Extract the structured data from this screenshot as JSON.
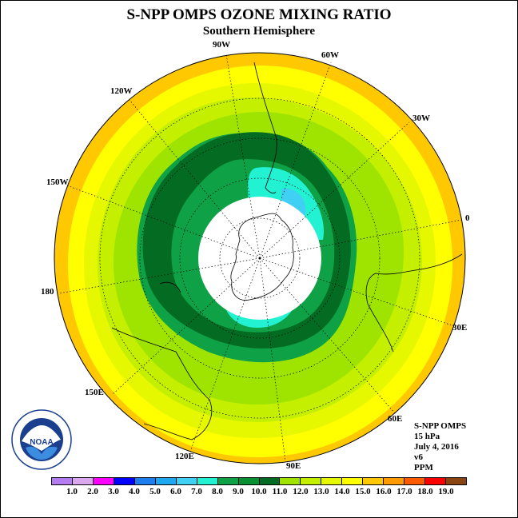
{
  "header": {
    "title": "S-NPP OMPS OZONE MIXING RATIO",
    "subtitle": "Southern Hemisphere"
  },
  "longitude_labels": [
    {
      "id": "90w",
      "text": "90W"
    },
    {
      "id": "60w",
      "text": "60W"
    },
    {
      "id": "120w",
      "text": "120W"
    },
    {
      "id": "30w",
      "text": "30W"
    },
    {
      "id": "150w",
      "text": "150W"
    },
    {
      "id": "0",
      "text": "0"
    },
    {
      "id": "180",
      "text": "180"
    },
    {
      "id": "30e",
      "text": "30E"
    },
    {
      "id": "150e",
      "text": "150E"
    },
    {
      "id": "60e",
      "text": "60E"
    },
    {
      "id": "120e",
      "text": "120E"
    },
    {
      "id": "90e",
      "text": "90E"
    }
  ],
  "info": {
    "instrument": "S-NPP OMPS",
    "level": "15 hPa",
    "date": "July 4, 2016",
    "version": "v6",
    "units": "PPM"
  },
  "logo": {
    "text": "NOAA",
    "icon": "noaa-logo"
  },
  "colorbar": {
    "colors": [
      "#b57cf2",
      "#dba8f0",
      "#ff00ff",
      "#0000ff",
      "#1e7ef0",
      "#1ea8f0",
      "#3fd0f4",
      "#22f2d2",
      "#0ea146",
      "#089033",
      "#046b22",
      "#9ee400",
      "#c4f000",
      "#e6f800",
      "#ffff00",
      "#ffc800",
      "#ff9a00",
      "#ff5a00",
      "#ff0000",
      "#8b4513"
    ],
    "ticks": [
      "1.0",
      "2.0",
      "3.0",
      "4.0",
      "5.0",
      "6.0",
      "7.0",
      "8.0",
      "9.0",
      "10.0",
      "11.0",
      "12.0",
      "13.0",
      "14.0",
      "15.0",
      "16.0",
      "17.0",
      "18.0",
      "19.0"
    ]
  },
  "map_colors": {
    "outer": "#ffc800",
    "yellow": "#ffff00",
    "lightyellow": "#e6f800",
    "lime": "#c4f000",
    "green1": "#9ee400",
    "green2": "#0ea146",
    "darkgreen": "#046b22",
    "cyan": "#22f2d2",
    "lightblue": "#3fd0f4"
  }
}
